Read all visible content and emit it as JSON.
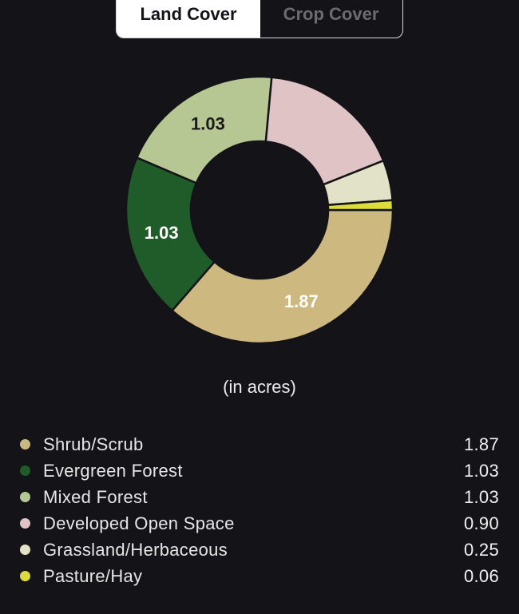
{
  "tabs": [
    {
      "label": "Land Cover",
      "active": true
    },
    {
      "label": "Crop Cover",
      "active": false
    }
  ],
  "unit_label": "(in acres)",
  "chart_data": {
    "type": "pie",
    "donut": true,
    "title": "",
    "slices": [
      {
        "label": "Shrub/Scrub",
        "value": 1.87,
        "display": "1.87",
        "color": "#cdb97f",
        "label_color": "#ffffff",
        "show_label": true
      },
      {
        "label": "Evergreen Forest",
        "value": 1.03,
        "display": "1.03",
        "color": "#1f5c2a",
        "label_color": "#ffffff",
        "show_label": true
      },
      {
        "label": "Mixed Forest",
        "value": 1.03,
        "display": "1.03",
        "color": "#b6c794",
        "label_color": "#1a1a1a",
        "show_label": true
      },
      {
        "label": "Developed Open Space",
        "value": 0.9,
        "display": "0.90",
        "color": "#e0c3c5",
        "label_color": "#1a1a1a",
        "show_label": false
      },
      {
        "label": "Grassland/Herbaceous",
        "value": 0.25,
        "display": "0.25",
        "color": "#e2e2c8",
        "label_color": "#1a1a1a",
        "show_label": false
      },
      {
        "label": "Pasture/Hay",
        "value": 0.06,
        "display": "0.06",
        "color": "#dcdc3c",
        "label_color": "#1a1a1a",
        "show_label": false
      }
    ]
  }
}
